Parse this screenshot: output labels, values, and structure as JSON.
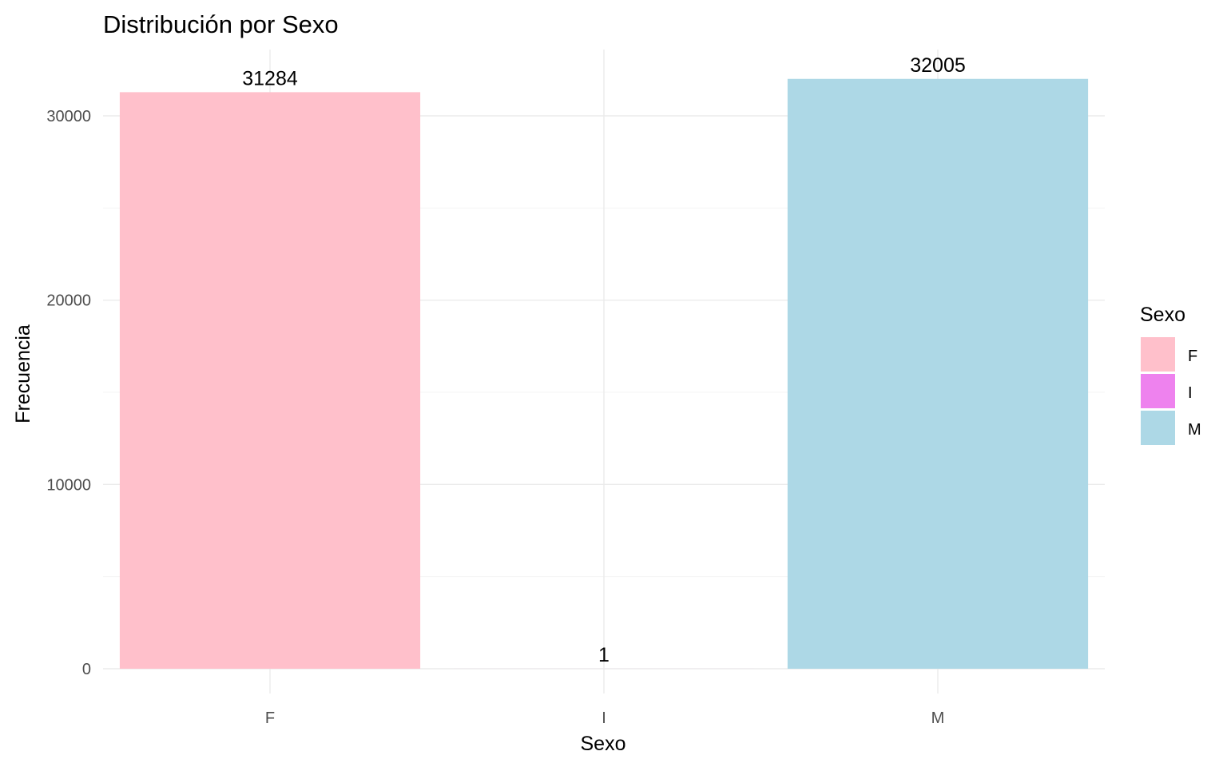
{
  "chart_data": {
    "type": "bar",
    "title": "Distribución por Sexo",
    "xlabel": "Sexo",
    "ylabel": "Frecuencia",
    "categories": [
      "F",
      "I",
      "M"
    ],
    "values": [
      31284,
      1,
      32005
    ],
    "colors": [
      "#ffc0cb",
      "#ee82ee",
      "#add8e6"
    ],
    "ylim": [
      0,
      33600
    ],
    "yticks": [
      0,
      10000,
      20000,
      30000
    ],
    "grid": true,
    "legend": {
      "title": "Sexo",
      "position": "right",
      "entries": [
        "F",
        "I",
        "M"
      ]
    }
  }
}
